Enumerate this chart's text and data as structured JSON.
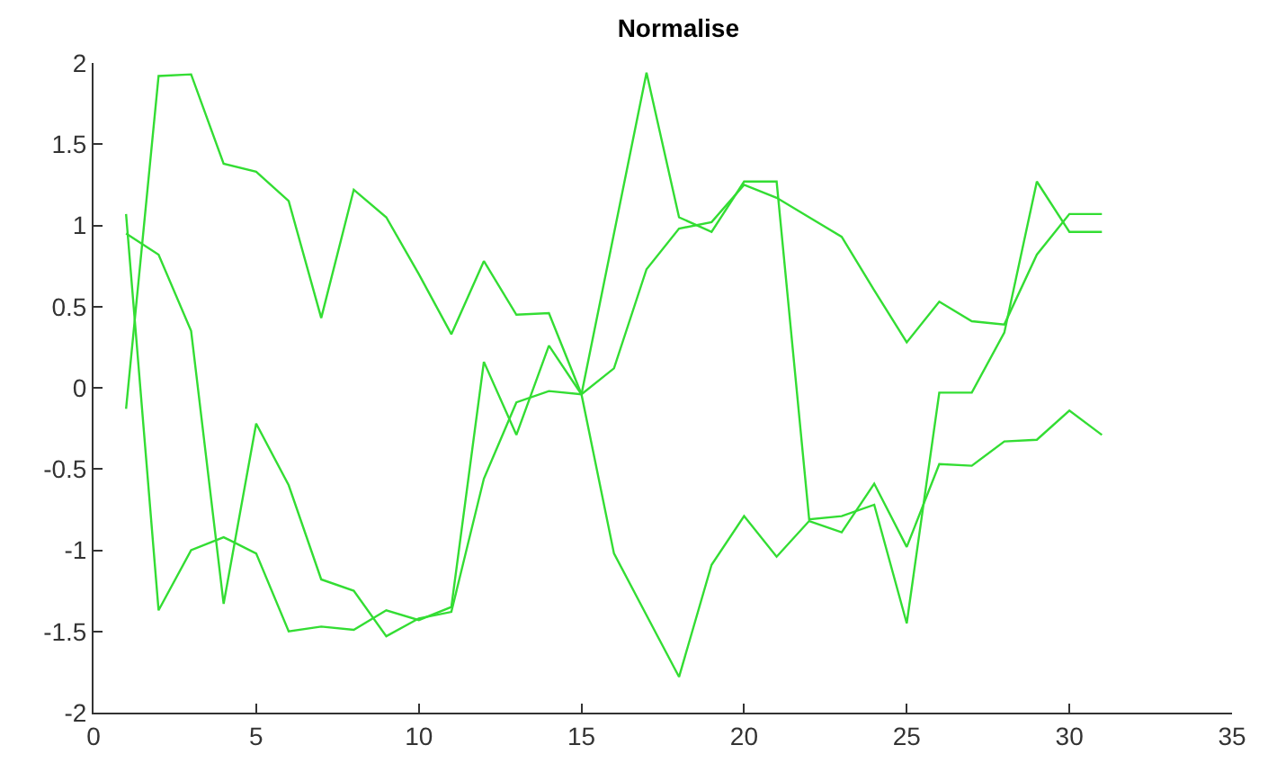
{
  "chart_data": {
    "type": "line",
    "title": "Normalise",
    "x": [
      1,
      2,
      3,
      4,
      5,
      6,
      7,
      8,
      9,
      10,
      11,
      12,
      13,
      14,
      15,
      16,
      17,
      18,
      19,
      20,
      21,
      22,
      23,
      24,
      25,
      26,
      27,
      28,
      29,
      30,
      31
    ],
    "series": [
      {
        "color": "#33dd33",
        "values": [
          -0.13,
          1.92,
          1.93,
          1.38,
          1.33,
          1.15,
          0.43,
          1.22,
          1.05,
          0.7,
          0.33,
          0.78,
          0.45,
          0.46,
          -0.04,
          -1.02,
          -1.4,
          -1.78,
          -1.09,
          -0.79,
          -1.04,
          -0.82,
          -0.89,
          -0.59,
          -0.98,
          -0.47,
          -0.48,
          -0.33,
          -0.32,
          -0.14,
          -0.29
        ]
      },
      {
        "color": "#33dd33",
        "values": [
          1.07,
          -1.37,
          -1.0,
          -0.92,
          -1.02,
          -1.5,
          -1.47,
          -1.49,
          -1.37,
          -1.43,
          -1.35,
          0.16,
          -0.29,
          0.26,
          -0.04,
          0.95,
          1.94,
          1.05,
          0.96,
          1.27,
          1.27,
          -0.81,
          -0.79,
          -0.72,
          -1.45,
          -0.03,
          -0.03,
          0.34,
          1.27,
          0.96,
          0.96
        ]
      },
      {
        "color": "#33dd33",
        "values": [
          0.95,
          0.82,
          0.35,
          -1.33,
          -0.22,
          -0.6,
          -1.18,
          -1.25,
          -1.53,
          -1.42,
          -1.38,
          -0.56,
          -0.09,
          -0.02,
          -0.04,
          0.12,
          0.73,
          0.98,
          1.02,
          1.25,
          1.17,
          1.05,
          0.93,
          0.6,
          0.28,
          0.53,
          0.41,
          0.39,
          0.82,
          1.07,
          1.07
        ]
      }
    ],
    "xlim": [
      0,
      35
    ],
    "xticks": [
      0,
      5,
      10,
      15,
      20,
      25,
      30,
      35
    ],
    "ylim": [
      -2,
      2
    ],
    "yticks": [
      -2,
      -1.5,
      -1,
      -0.5,
      0,
      0.5,
      1,
      1.5,
      2
    ],
    "line_style": "solid",
    "marker": "none"
  }
}
